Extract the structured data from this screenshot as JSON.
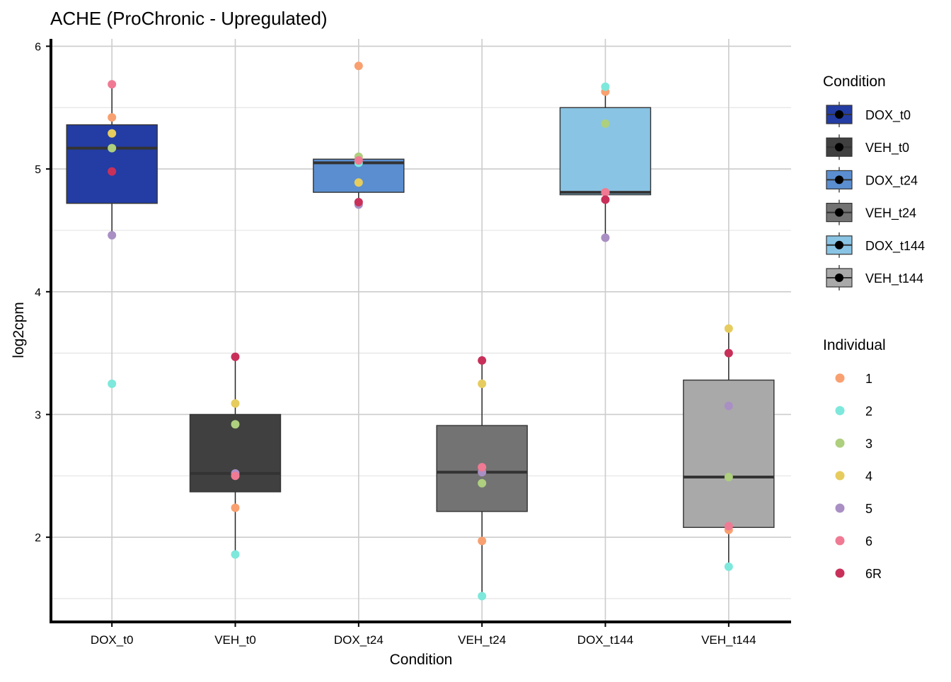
{
  "chart_data": {
    "type": "box",
    "title": "ACHE (ProChronic - Upregulated)",
    "xlabel": "Condition",
    "ylabel": "log2cpm",
    "ylim": [
      1.31,
      6.06
    ],
    "yticks": [
      2,
      3,
      4,
      5,
      6
    ],
    "grid": true,
    "legend_placement": "right",
    "categories": [
      "DOX_t0",
      "VEH_t0",
      "DOX_t24",
      "VEH_t24",
      "DOX_t144",
      "VEH_t144"
    ],
    "condition_colors": {
      "DOX_t0": "#233DA4",
      "VEH_t0": "#404040",
      "DOX_t24": "#5A8ED0",
      "VEH_t24": "#737373",
      "DOX_t144": "#89C4E4",
      "VEH_t144": "#A9A9A9"
    },
    "boxes": [
      {
        "condition": "DOX_t0",
        "q1": 4.72,
        "median": 5.17,
        "q3": 5.36,
        "whisker_low": 4.46,
        "whisker_high": 5.69
      },
      {
        "condition": "VEH_t0",
        "q1": 2.37,
        "median": 2.52,
        "q3": 3.0,
        "whisker_low": 1.86,
        "whisker_high": 3.47
      },
      {
        "condition": "DOX_t24",
        "q1": 4.81,
        "median": 5.05,
        "q3": 5.08,
        "whisker_low": 4.71,
        "whisker_high": 5.1
      },
      {
        "condition": "VEH_t24",
        "q1": 2.21,
        "median": 2.53,
        "q3": 2.91,
        "whisker_low": 1.52,
        "whisker_high": 3.44
      },
      {
        "condition": "DOX_t144",
        "q1": 4.79,
        "median": 4.81,
        "q3": 5.5,
        "whisker_low": 4.44,
        "whisker_high": 5.67
      },
      {
        "condition": "VEH_t144",
        "q1": 2.08,
        "median": 2.49,
        "q3": 3.28,
        "whisker_low": 1.76,
        "whisker_high": 3.7
      }
    ],
    "individual_colors": {
      "1": "#F9A070",
      "2": "#7DE8DB",
      "3": "#AECF7E",
      "4": "#E6CC5E",
      "5": "#A98FC4",
      "6": "#F07A93",
      "6R": "#C8305A"
    },
    "points": [
      {
        "condition": "DOX_t0",
        "values": {
          "1": 5.42,
          "2": 3.25,
          "3": 5.17,
          "4": 5.29,
          "5": 4.46,
          "6": 5.69,
          "6R": 4.98
        }
      },
      {
        "condition": "VEH_t0",
        "values": {
          "1": 2.24,
          "2": 1.86,
          "3": 2.92,
          "4": 3.09,
          "5": 2.52,
          "6": 2.5,
          "6R": 3.47
        }
      },
      {
        "condition": "DOX_t24",
        "values": {
          "1": 5.84,
          "2": 5.05,
          "3": 5.1,
          "4": 4.89,
          "5": 4.71,
          "6": 5.07,
          "6R": 4.73
        }
      },
      {
        "condition": "VEH_t24",
        "values": {
          "1": 1.97,
          "2": 1.52,
          "3": 2.44,
          "4": 3.25,
          "5": 2.53,
          "6": 2.57,
          "6R": 3.44
        }
      },
      {
        "condition": "DOX_t144",
        "values": {
          "1": 5.63,
          "2": 5.67,
          "3": 5.37,
          "4": 4.81,
          "5": 4.44,
          "6": 4.81,
          "6R": 4.75
        }
      },
      {
        "condition": "VEH_t144",
        "values": {
          "1": 2.06,
          "2": 1.76,
          "3": 2.49,
          "4": 3.7,
          "5": 3.07,
          "6": 2.09,
          "6R": 3.5
        }
      }
    ],
    "legends": {
      "condition": {
        "title": "Condition",
        "entries": [
          "DOX_t0",
          "VEH_t0",
          "DOX_t24",
          "VEH_t24",
          "DOX_t144",
          "VEH_t144"
        ]
      },
      "individual": {
        "title": "Individual",
        "entries": [
          "1",
          "2",
          "3",
          "4",
          "5",
          "6",
          "6R"
        ]
      }
    }
  }
}
